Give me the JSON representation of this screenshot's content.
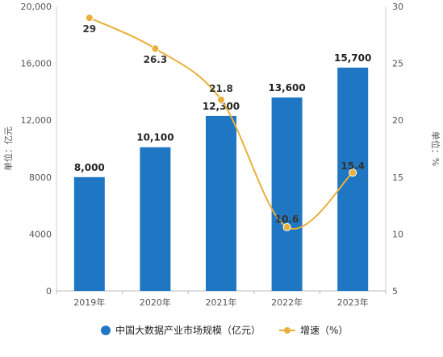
{
  "chart_data": {
    "type": "bar",
    "categories": [
      "2019年",
      "2020年",
      "2021年",
      "2022年",
      "2023年"
    ],
    "series": [
      {
        "name": "中国大数据产业市场规模（亿元）",
        "type": "bar",
        "axis": "left",
        "values": [
          8000,
          10100,
          12300,
          13600,
          15700
        ],
        "labels": [
          "8,000",
          "10,100",
          "12,300",
          "13,600",
          "15,700"
        ],
        "color": "#1f77c4"
      },
      {
        "name": "增速（%）",
        "type": "line",
        "axis": "right",
        "values": [
          29,
          26.3,
          21.8,
          10.6,
          15.4
        ],
        "labels": [
          "29",
          "26.3",
          "21.8",
          "10.6",
          "15.4"
        ],
        "color": "#e8b03a"
      }
    ],
    "y_left": {
      "label": "单位：亿元",
      "range": [
        0,
        20000
      ],
      "ticks": [
        0,
        4000,
        8000,
        12000,
        16000,
        20000
      ],
      "tick_labels": [
        "0",
        "4000",
        "8000",
        "12,000",
        "16,000",
        "20,000"
      ]
    },
    "y_right": {
      "label": "单位：%",
      "range": [
        5,
        30
      ],
      "ticks": [
        5,
        10,
        15,
        20,
        25,
        30
      ],
      "tick_labels": [
        "5",
        "10",
        "15",
        "20",
        "25",
        "30"
      ]
    },
    "grid": false,
    "legend": "bottom"
  }
}
